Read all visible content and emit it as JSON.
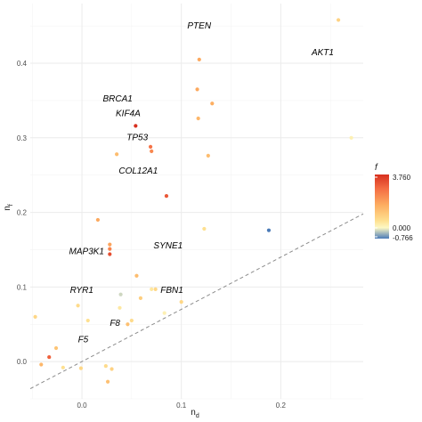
{
  "chart_data": {
    "type": "scatter",
    "xlabel": "n_d",
    "ylabel": "n_f",
    "xlabel_main": "n",
    "xlabel_sub": "d",
    "ylabel_main": "n",
    "ylabel_sub": "f",
    "xlim": [
      -0.052,
      0.283
    ],
    "ylim": [
      -0.05,
      0.48
    ],
    "x_ticks": [
      0.0,
      0.1,
      0.2
    ],
    "x_tick_labels": [
      "0.0",
      "0.1",
      "0.2"
    ],
    "y_ticks": [
      0.0,
      0.1,
      0.2,
      0.3,
      0.4
    ],
    "y_tick_labels": [
      "0.0",
      "0.1",
      "0.2",
      "0.3",
      "0.4"
    ],
    "grid": true,
    "reference_line": {
      "style": "dashed",
      "slope": 0.7,
      "intercept": 0.0
    },
    "color_scale": {
      "title": "f",
      "min": -0.766,
      "max": 3.76,
      "mid": 0.0,
      "labels": [
        "3.760",
        "0.000",
        "-0.766"
      ],
      "colors": {
        "low": "#4a7ab7",
        "mid": "#fdf8c4",
        "high": "#d7301f"
      }
    },
    "points": [
      {
        "x": -0.047,
        "y": 0.06,
        "f": 0.5
      },
      {
        "x": -0.041,
        "y": -0.004,
        "f": 1.2
      },
      {
        "x": -0.033,
        "y": 0.006,
        "f": 2.8
      },
      {
        "x": -0.026,
        "y": 0.018,
        "f": 0.9
      },
      {
        "x": -0.019,
        "y": -0.008,
        "f": 0.3
      },
      {
        "x": -0.004,
        "y": 0.075,
        "f": 0.4
      },
      {
        "x": -0.001,
        "y": -0.009,
        "f": 0.5
      },
      {
        "x": 0.006,
        "y": 0.055,
        "f": 0.3
      },
      {
        "x": 0.016,
        "y": 0.19,
        "f": 1.5
      },
      {
        "x": 0.024,
        "y": -0.006,
        "f": 0.4
      },
      {
        "x": 0.026,
        "y": -0.027,
        "f": 1.0
      },
      {
        "x": 0.028,
        "y": 0.157,
        "f": 1.6
      },
      {
        "x": 0.028,
        "y": 0.151,
        "f": 2.2
      },
      {
        "x": 0.028,
        "y": 0.144,
        "f": 3.2
      },
      {
        "x": 0.03,
        "y": -0.01,
        "f": 0.6
      },
      {
        "x": 0.035,
        "y": 0.278,
        "f": 1.1
      },
      {
        "x": 0.038,
        "y": 0.072,
        "f": 0.2
      },
      {
        "x": 0.039,
        "y": 0.09,
        "f": -0.2
      },
      {
        "x": 0.046,
        "y": 0.05,
        "f": 1.0
      },
      {
        "x": 0.05,
        "y": 0.055,
        "f": 0.4
      },
      {
        "x": 0.054,
        "y": 0.316,
        "f": 3.76
      },
      {
        "x": 0.055,
        "y": 0.115,
        "f": 1.1
      },
      {
        "x": 0.059,
        "y": 0.085,
        "f": 0.7
      },
      {
        "x": 0.069,
        "y": 0.288,
        "f": 2.5
      },
      {
        "x": 0.07,
        "y": 0.282,
        "f": 2.1
      },
      {
        "x": 0.07,
        "y": 0.097,
        "f": 0.2
      },
      {
        "x": 0.074,
        "y": 0.097,
        "f": 0.5
      },
      {
        "x": 0.083,
        "y": 0.065,
        "f": 0.1
      },
      {
        "x": 0.085,
        "y": 0.222,
        "f": 3.0
      },
      {
        "x": 0.1,
        "y": 0.08,
        "f": 0.5
      },
      {
        "x": 0.116,
        "y": 0.365,
        "f": 1.5
      },
      {
        "x": 0.117,
        "y": 0.326,
        "f": 1.2
      },
      {
        "x": 0.118,
        "y": 0.405,
        "f": 1.5
      },
      {
        "x": 0.123,
        "y": 0.178,
        "f": 0.3
      },
      {
        "x": 0.127,
        "y": 0.276,
        "f": 1.1
      },
      {
        "x": 0.131,
        "y": 0.346,
        "f": 1.4
      },
      {
        "x": 0.188,
        "y": 0.176,
        "f": -0.766
      },
      {
        "x": 0.258,
        "y": 0.458,
        "f": 0.6
      },
      {
        "x": 0.271,
        "y": 0.3,
        "f": 0.1
      }
    ],
    "annotations": [
      {
        "text": "PTEN",
        "x": 0.106,
        "y": 0.451
      },
      {
        "text": "AKT1",
        "x": 0.231,
        "y": 0.415
      },
      {
        "text": "BRCA1",
        "x": 0.021,
        "y": 0.353
      },
      {
        "text": "KIF4A",
        "x": 0.034,
        "y": 0.333
      },
      {
        "text": "TP53",
        "x": 0.045,
        "y": 0.301
      },
      {
        "text": "COL12A1",
        "x": 0.037,
        "y": 0.256
      },
      {
        "text": "SYNE1",
        "x": 0.072,
        "y": 0.156
      },
      {
        "text": "MAP3K1",
        "x": -0.013,
        "y": 0.148
      },
      {
        "text": "RYR1",
        "x": -0.012,
        "y": 0.096
      },
      {
        "text": "FBN1",
        "x": 0.079,
        "y": 0.096
      },
      {
        "text": "F8",
        "x": 0.028,
        "y": 0.052
      },
      {
        "text": "F5",
        "x": -0.004,
        "y": 0.03
      }
    ]
  }
}
